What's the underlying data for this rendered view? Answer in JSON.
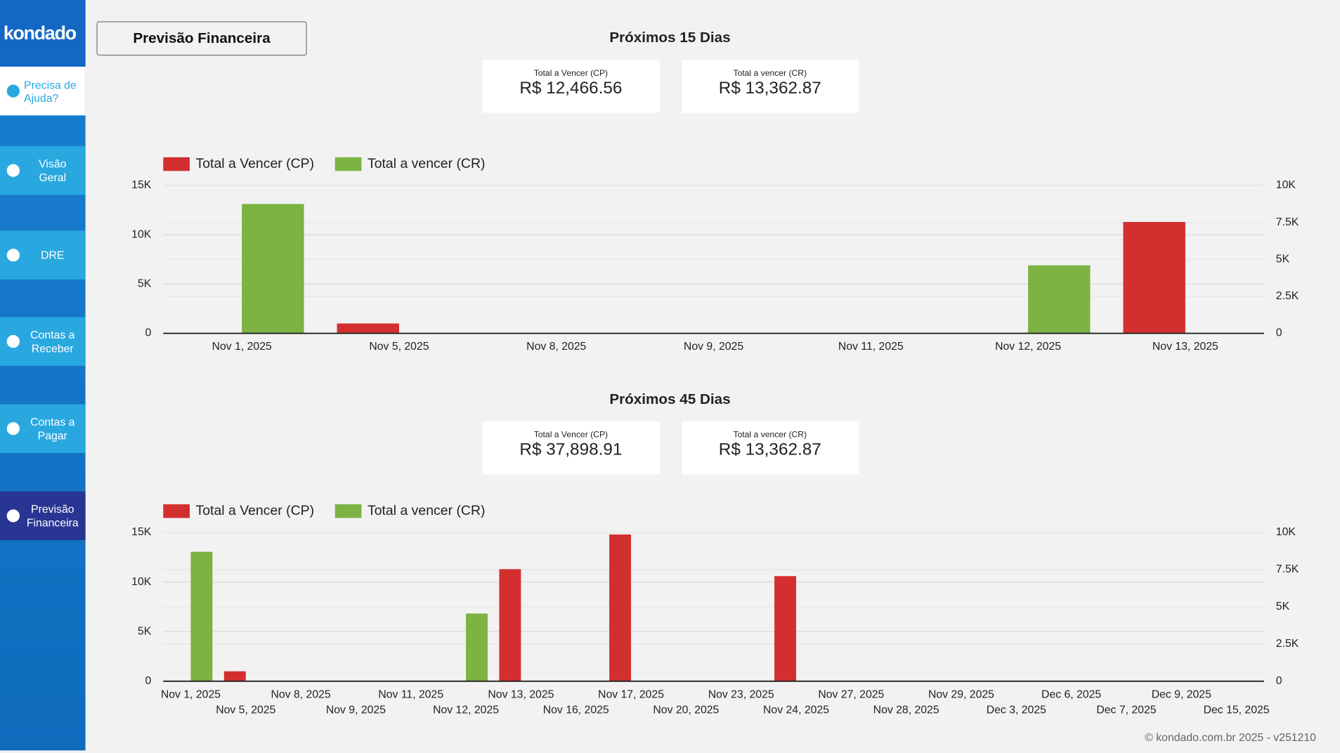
{
  "sidebar": {
    "logo": "kondado",
    "help": "Precisa de Ajuda?",
    "menu": [
      "Visão Geral",
      "DRE",
      "Contas a Receber",
      "Contas a Pagar",
      "Previsão Financeira"
    ]
  },
  "header": {
    "title": "Previsão Financeira"
  },
  "footer": "© kondado.com.br 2025 - v251210",
  "chart_data": [
    {
      "type": "bar",
      "title": "Próximos 15 Dias",
      "kpis": [
        {
          "label": "Total a Vencer (CP)",
          "value": "R$ 12,466.56"
        },
        {
          "label": "Total a vencer (CR)",
          "value": "R$ 13,362.87"
        }
      ],
      "categories": [
        "Nov 1, 2025",
        "Nov 5, 2025",
        "Nov 8, 2025",
        "Nov 9, 2025",
        "Nov 11, 2025",
        "Nov 12, 2025",
        "Nov 13, 2025"
      ],
      "series": [
        {
          "name": "Total a Vencer (CP)",
          "color": "#d32f2f",
          "values": [
            null,
            1000,
            null,
            null,
            null,
            null,
            11300
          ]
        },
        {
          "name": "Total a vencer (CR)",
          "color": "#7cb342",
          "axis": "y2",
          "values": [
            8750,
            null,
            null,
            null,
            null,
            4600,
            null
          ]
        }
      ],
      "ylim": [
        0,
        15000
      ],
      "yticks": [
        0,
        {
          "value": 5000,
          "label": "5K"
        },
        {
          "value": 10000,
          "label": "10K"
        },
        {
          "value": 15000,
          "label": "15K"
        }
      ],
      "y2lim": [
        0,
        10000
      ],
      "y2ticks": [
        0,
        {
          "value": 2500,
          "label": "2.5K"
        },
        {
          "value": 5000,
          "label": "5K"
        },
        {
          "value": 7500,
          "label": "7.5K"
        },
        {
          "value": 10000,
          "label": "10K"
        }
      ],
      "grid": true,
      "legend": "top-left"
    },
    {
      "type": "bar",
      "title": "Próximos 45 Dias",
      "kpis": [
        {
          "label": "Total a Vencer (CP)",
          "value": "R$ 37,898.91"
        },
        {
          "label": "Total a vencer (CR)",
          "value": "R$ 13,362.87"
        }
      ],
      "categories": [
        "Nov 1, 2025",
        "Nov 5, 2025",
        "Nov 8, 2025",
        "Nov 9, 2025",
        "Nov 11, 2025",
        "Nov 12, 2025",
        "Nov 13, 2025",
        "Nov 16, 2025",
        "Nov 17, 2025",
        "Nov 20, 2025",
        "Nov 23, 2025",
        "Nov 24, 2025",
        "Nov 27, 2025",
        "Nov 28, 2025",
        "Nov 29, 2025",
        "Dec 3, 2025",
        "Dec 6, 2025",
        "Dec 7, 2025",
        "Dec 9, 2025",
        "Dec 15, 2025"
      ],
      "series": [
        {
          "name": "Total a Vencer (CP)",
          "color": "#d32f2f",
          "values": [
            null,
            1000,
            null,
            null,
            null,
            null,
            11300,
            null,
            14800,
            null,
            null,
            10600,
            null,
            null,
            null,
            null,
            null,
            null,
            null,
            null
          ]
        },
        {
          "name": "Total a vencer (CR)",
          "color": "#7cb342",
          "axis": "y2",
          "values": [
            8700,
            null,
            null,
            null,
            null,
            4550,
            null,
            null,
            null,
            null,
            null,
            null,
            null,
            null,
            null,
            null,
            null,
            null,
            null,
            null
          ]
        }
      ],
      "ylim": [
        0,
        15000
      ],
      "yticks": [
        0,
        {
          "value": 5000,
          "label": "5K"
        },
        {
          "value": 10000,
          "label": "10K"
        },
        {
          "value": 15000,
          "label": "15K"
        }
      ],
      "y2lim": [
        0,
        10000
      ],
      "y2ticks": [
        0,
        {
          "value": 2500,
          "label": "2.5K"
        },
        {
          "value": 5000,
          "label": "5K"
        },
        {
          "value": 7500,
          "label": "7.5K"
        },
        {
          "value": 10000,
          "label": "10K"
        }
      ],
      "grid": true,
      "legend": "top-left"
    }
  ]
}
